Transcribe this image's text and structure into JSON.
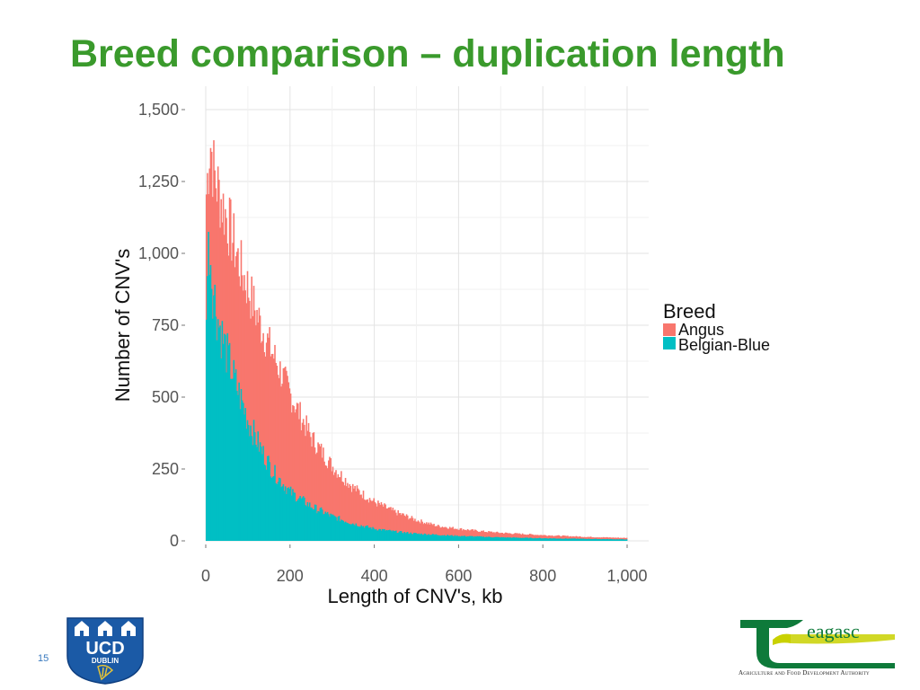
{
  "slide": {
    "title": "Breed comparison – duplication length",
    "page_number": "15"
  },
  "logos": {
    "ucd_top": "UCD",
    "ucd_bottom": "DUBLIN",
    "teagasc_name": "eagasc",
    "teagasc_tagline": "Agriculture and Food Development Authority"
  },
  "colors": {
    "title": "#3a9a2c",
    "angus": "#f8766d",
    "belgian_blue": "#00bfc4",
    "grid": "#e3e3e3",
    "ucd_blue": "#1b5aa6",
    "teagasc_green": "#0e7a3a",
    "teagasc_yellow": "#c9d100"
  },
  "chart_data": {
    "type": "histogram",
    "title": "",
    "xlabel": "Length of CNV's, kb",
    "ylabel": "Number of CNV's",
    "xlim": [
      0,
      1000
    ],
    "ylim": [
      0,
      1500
    ],
    "x_ticks": [
      0,
      200,
      400,
      600,
      800,
      1000
    ],
    "x_tick_labels": [
      "0",
      "200",
      "400",
      "600",
      "800",
      "1,000"
    ],
    "y_ticks": [
      0,
      250,
      500,
      750,
      1000,
      1250,
      1500
    ],
    "y_tick_labels": [
      "0",
      "250",
      "500",
      "750",
      "1,000",
      "1,250",
      "1,500"
    ],
    "grid": true,
    "legend": {
      "title": "Breed",
      "position": "right"
    },
    "series": [
      {
        "name": "Angus",
        "color": "#f8766d",
        "anchors": [
          [
            0,
            1180
          ],
          [
            10,
            1400
          ],
          [
            20,
            1270
          ],
          [
            40,
            1170
          ],
          [
            60,
            1070
          ],
          [
            80,
            960
          ],
          [
            100,
            880
          ],
          [
            120,
            790
          ],
          [
            150,
            680
          ],
          [
            180,
            580
          ],
          [
            200,
            510
          ],
          [
            250,
            360
          ],
          [
            300,
            260
          ],
          [
            350,
            185
          ],
          [
            400,
            135
          ],
          [
            450,
            100
          ],
          [
            500,
            72
          ],
          [
            550,
            52
          ],
          [
            600,
            42
          ],
          [
            650,
            34
          ],
          [
            700,
            28
          ],
          [
            750,
            24
          ],
          [
            800,
            20
          ],
          [
            850,
            17
          ],
          [
            900,
            14
          ],
          [
            950,
            12
          ],
          [
            1000,
            10
          ]
        ]
      },
      {
        "name": "Belgian-Blue",
        "color": "#00bfc4",
        "anchors": [
          [
            0,
            820
          ],
          [
            8,
            1060
          ],
          [
            15,
            900
          ],
          [
            30,
            760
          ],
          [
            50,
            650
          ],
          [
            70,
            550
          ],
          [
            100,
            420
          ],
          [
            130,
            320
          ],
          [
            160,
            240
          ],
          [
            200,
            170
          ],
          [
            250,
            120
          ],
          [
            300,
            85
          ],
          [
            350,
            60
          ],
          [
            400,
            42
          ],
          [
            450,
            32
          ],
          [
            500,
            25
          ],
          [
            600,
            17
          ],
          [
            700,
            12
          ],
          [
            800,
            9
          ],
          [
            900,
            7
          ],
          [
            1000,
            5
          ]
        ]
      }
    ]
  }
}
